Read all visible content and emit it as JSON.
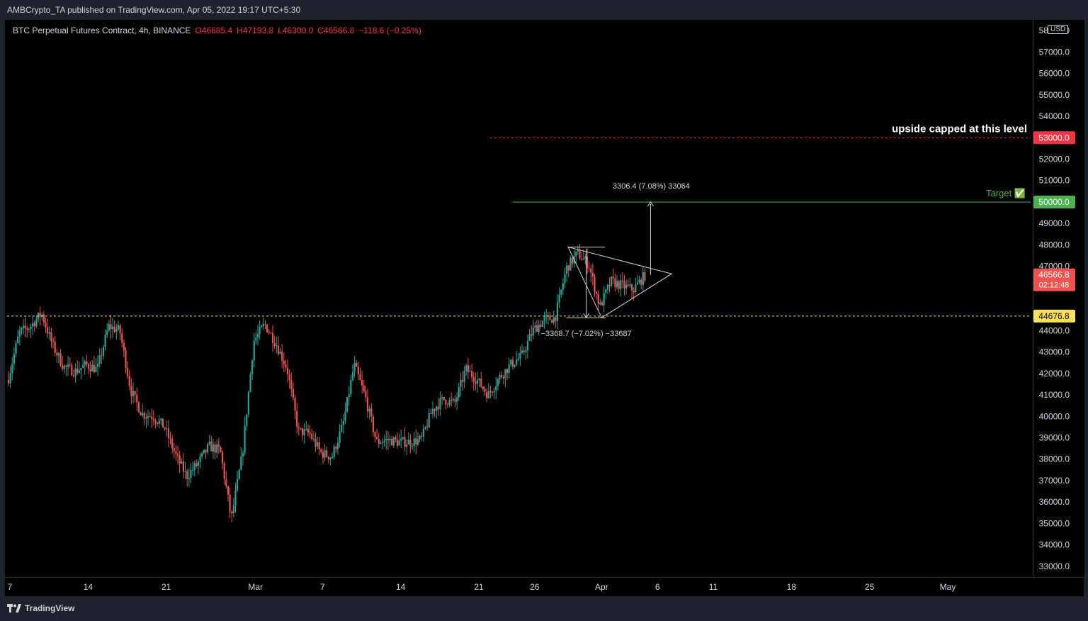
{
  "header": {
    "publisher_text": "AMBCrypto_TA published on TradingView.com, Apr 05, 2022 19:17 UTC+5:30"
  },
  "legend": {
    "symbol": "BTC Perpetual Futures Contract, 4h, BINANCE",
    "open": "O46685.4",
    "high": "H47193.8",
    "low": "L46300.0",
    "close": "C46566.8",
    "change": "−118.6 (−0.25%)"
  },
  "currency": "USD",
  "footer": {
    "brand": "TradingView"
  },
  "colors": {
    "up": "#26a69a",
    "down": "#ef5350",
    "target": "#4caf50",
    "cap": "#f23645",
    "support": "#fbe15c"
  },
  "chart_data": {
    "type": "candlestick",
    "interval": "4h",
    "ylim": [
      32500,
      58500
    ],
    "y_ticks": [
      33000,
      34000,
      35000,
      36000,
      37000,
      38000,
      39000,
      40000,
      41000,
      42000,
      43000,
      44000,
      45000,
      46000,
      47000,
      48000,
      49000,
      50000,
      51000,
      52000,
      53000,
      54000,
      55000,
      56000,
      57000,
      58000
    ],
    "x_ticks": [
      {
        "label": "7",
        "date": "2022-02-07"
      },
      {
        "label": "14",
        "date": "2022-02-14"
      },
      {
        "label": "21",
        "date": "2022-02-21"
      },
      {
        "label": "Mar",
        "date": "2022-03-01"
      },
      {
        "label": "7",
        "date": "2022-03-07"
      },
      {
        "label": "14",
        "date": "2022-03-14"
      },
      {
        "label": "21",
        "date": "2022-03-21"
      },
      {
        "label": "26",
        "date": "2022-03-26"
      },
      {
        "label": "Apr",
        "date": "2022-04-01"
      },
      {
        "label": "6",
        "date": "2022-04-06"
      },
      {
        "label": "11",
        "date": "2022-04-11"
      },
      {
        "label": "18",
        "date": "2022-04-18"
      },
      {
        "label": "25",
        "date": "2022-04-25"
      },
      {
        "label": "May",
        "date": "2022-05-02"
      }
    ],
    "trend": [
      {
        "date": "2022-02-07",
        "price": 41700
      },
      {
        "date": "2022-02-08",
        "price": 43900
      },
      {
        "date": "2022-02-09",
        "price": 44200
      },
      {
        "date": "2022-02-10",
        "price": 44800
      },
      {
        "date": "2022-02-11",
        "price": 43300
      },
      {
        "date": "2022-02-12",
        "price": 42300
      },
      {
        "date": "2022-02-13",
        "price": 42100
      },
      {
        "date": "2022-02-14",
        "price": 42400
      },
      {
        "date": "2022-02-15",
        "price": 42200
      },
      {
        "date": "2022-02-16",
        "price": 44200
      },
      {
        "date": "2022-02-17",
        "price": 44000
      },
      {
        "date": "2022-02-18",
        "price": 41200
      },
      {
        "date": "2022-02-19",
        "price": 40100
      },
      {
        "date": "2022-02-20",
        "price": 40000
      },
      {
        "date": "2022-02-21",
        "price": 39500
      },
      {
        "date": "2022-02-22",
        "price": 38200
      },
      {
        "date": "2022-02-23",
        "price": 37200
      },
      {
        "date": "2022-02-24",
        "price": 37800
      },
      {
        "date": "2022-02-25",
        "price": 38600
      },
      {
        "date": "2022-02-26",
        "price": 38400
      },
      {
        "date": "2022-02-27",
        "price": 35200
      },
      {
        "date": "2022-02-28",
        "price": 38300
      },
      {
        "date": "2022-03-01",
        "price": 43500
      },
      {
        "date": "2022-03-02",
        "price": 44300
      },
      {
        "date": "2022-03-03",
        "price": 43400
      },
      {
        "date": "2022-03-04",
        "price": 42200
      },
      {
        "date": "2022-03-05",
        "price": 39300
      },
      {
        "date": "2022-03-06",
        "price": 39200
      },
      {
        "date": "2022-03-07",
        "price": 38300
      },
      {
        "date": "2022-03-08",
        "price": 38100
      },
      {
        "date": "2022-03-09",
        "price": 39600
      },
      {
        "date": "2022-03-10",
        "price": 42400
      },
      {
        "date": "2022-03-11",
        "price": 40900
      },
      {
        "date": "2022-03-12",
        "price": 38800
      },
      {
        "date": "2022-03-13",
        "price": 38900
      },
      {
        "date": "2022-03-14",
        "price": 38800
      },
      {
        "date": "2022-03-15",
        "price": 38800
      },
      {
        "date": "2022-03-16",
        "price": 38900
      },
      {
        "date": "2022-03-17",
        "price": 40300
      },
      {
        "date": "2022-03-18",
        "price": 40800
      },
      {
        "date": "2022-03-19",
        "price": 40600
      },
      {
        "date": "2022-03-20",
        "price": 42200
      },
      {
        "date": "2022-03-21",
        "price": 41700
      },
      {
        "date": "2022-03-22",
        "price": 41000
      },
      {
        "date": "2022-03-23",
        "price": 41800
      },
      {
        "date": "2022-03-24",
        "price": 42400
      },
      {
        "date": "2022-03-25",
        "price": 42800
      },
      {
        "date": "2022-03-26",
        "price": 44000
      },
      {
        "date": "2022-03-27",
        "price": 44500
      },
      {
        "date": "2022-03-28",
        "price": 44600
      },
      {
        "date": "2022-03-29",
        "price": 46900
      },
      {
        "date": "2022-03-30",
        "price": 47600
      },
      {
        "date": "2022-03-31",
        "price": 47100
      },
      {
        "date": "2022-04-01",
        "price": 45100
      },
      {
        "date": "2022-04-02",
        "price": 46300
      },
      {
        "date": "2022-04-03",
        "price": 46100
      },
      {
        "date": "2022-04-04",
        "price": 45900
      },
      {
        "date": "2022-04-05",
        "price": 46567
      }
    ],
    "horizontal_levels": [
      {
        "price": 53000,
        "style": "dashed",
        "color": "#f23645",
        "axis_label": "53000.0",
        "annotation": "upside capped at this level"
      },
      {
        "price": 50000,
        "style": "solid",
        "color": "#4caf50",
        "axis_label": "50000.0",
        "annotation": "Target ✅"
      },
      {
        "price": 44676.8,
        "style": "dashed",
        "color": "#fbe15c",
        "axis_label": "44676.8"
      }
    ],
    "current_price": {
      "value": 46566.8,
      "label": "46566.8",
      "countdown": "02:12:48"
    },
    "measurements": [
      {
        "text": "3306.4 (7.08%) 33064",
        "from": 46600,
        "to": 50000
      },
      {
        "text": "−3368.7 (−7.02%) −33687",
        "from": 47800,
        "to": 44600
      }
    ],
    "pattern": {
      "type": "symmetrical triangle",
      "upper_start": {
        "date": "2022-03-29",
        "price": 47900
      },
      "lower_start": {
        "date": "2022-04-01",
        "price": 44600
      },
      "apex": {
        "date": "2022-04-06",
        "price": 46650
      }
    }
  }
}
